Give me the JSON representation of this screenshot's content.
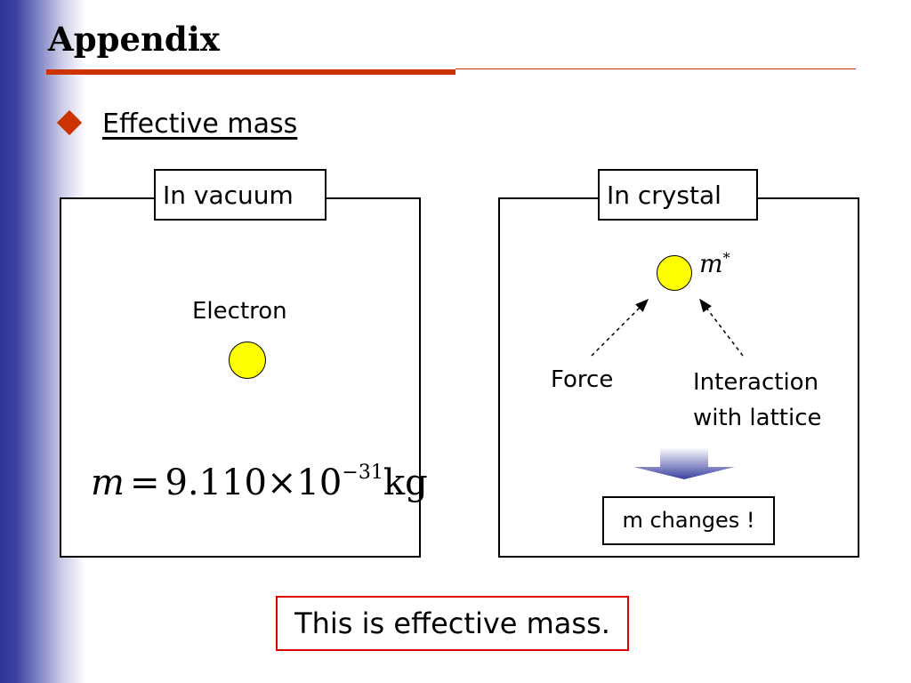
{
  "slide": {
    "title": "Appendix",
    "subtitle": "Effective mass",
    "accent_color": "#cc3300",
    "sidebar_color": "#2f3594"
  },
  "left_panel": {
    "tab_label": "In vacuum",
    "electron_label": "Electron",
    "formula": {
      "symbol": "m",
      "equals": "=",
      "mantissa": "9.110",
      "times": "×",
      "base": "10",
      "exponent": "−31",
      "unit": "kg"
    }
  },
  "right_panel": {
    "tab_label": "In crystal",
    "mass_symbol": "m",
    "mass_superscript": "*",
    "force_label": "Force",
    "interaction_label_line1": "Interaction",
    "interaction_label_line2": "with lattice",
    "result_label": "m changes !"
  },
  "footer": {
    "conclusion": "This is effective mass.",
    "conclusion_border_color": "#dd0000"
  },
  "colors": {
    "particle_fill": "#ffff00",
    "arrow_fill": "#3a40a0"
  }
}
